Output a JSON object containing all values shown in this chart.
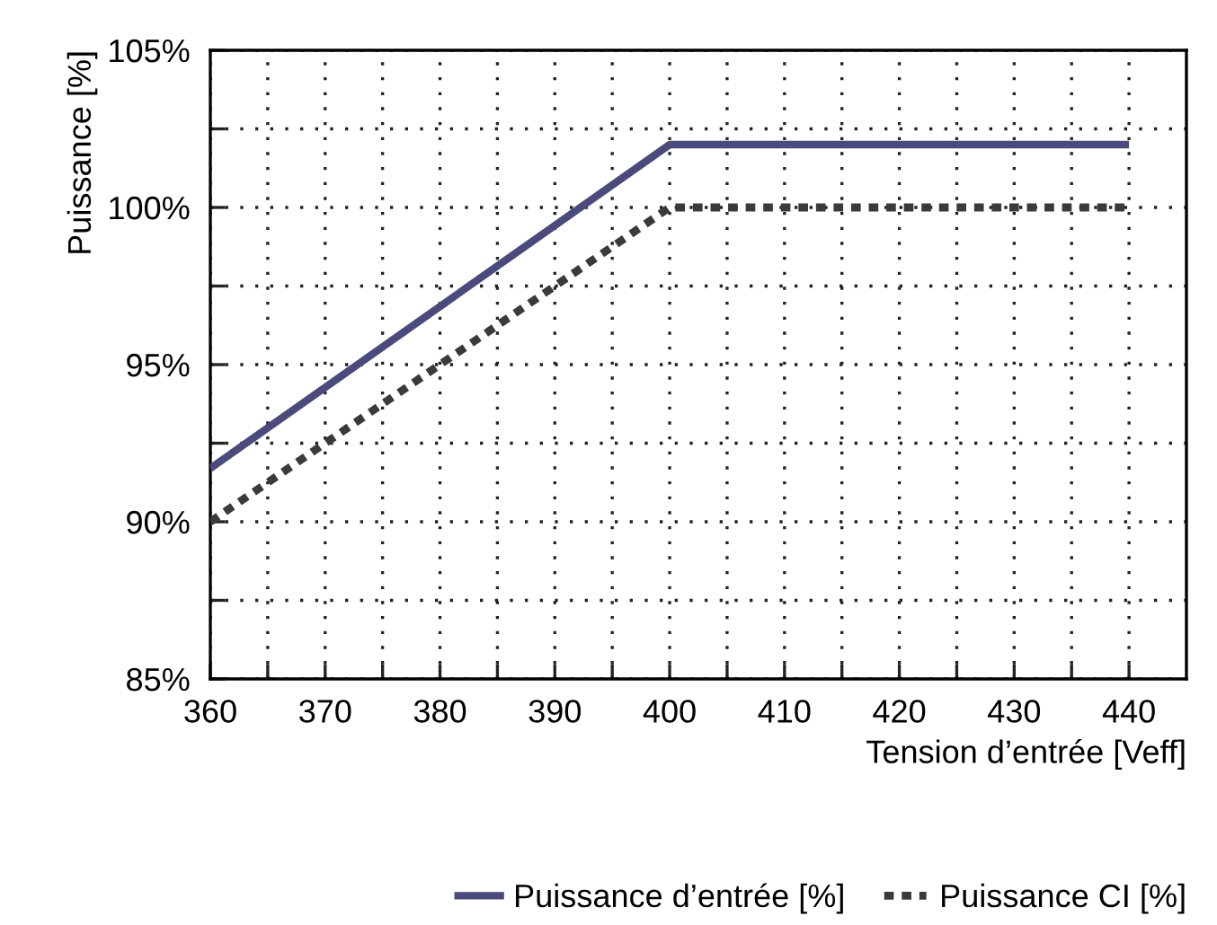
{
  "chart_data": {
    "type": "line",
    "xlabel": "Tension d’entrée [Veff]",
    "ylabel": "Puissance [%]",
    "series": [
      {
        "name": "Puissance d’entrée [%]",
        "color": "#4b4a7c",
        "x": [
          360,
          400,
          440
        ],
        "values": [
          91.7,
          102,
          102
        ],
        "line_style": "solid"
      },
      {
        "name": "Puissance CI [%]",
        "color": "#3a3a3a",
        "x": [
          360,
          400,
          440
        ],
        "values": [
          90,
          100,
          100
        ],
        "line_style": "dotted"
      }
    ],
    "xlim": [
      360,
      445
    ],
    "ylim": [
      85,
      105
    ],
    "xticks": [
      360,
      {
        "value": 365,
        "label": null
      },
      370,
      {
        "value": 375,
        "label": null
      },
      380,
      {
        "value": 385,
        "label": null
      },
      390,
      {
        "value": 395,
        "label": null
      },
      400,
      {
        "value": 405,
        "label": null
      },
      410,
      {
        "value": 415,
        "label": null
      },
      420,
      {
        "value": 425,
        "label": null
      },
      430,
      {
        "value": 435,
        "label": null
      },
      440
    ],
    "yticks": [
      {
        "value": 85,
        "label": "85%"
      },
      {
        "value": 87.5,
        "label": null
      },
      {
        "value": 90,
        "label": "90%"
      },
      {
        "value": 92.5,
        "label": null
      },
      {
        "value": 95,
        "label": "95%"
      },
      {
        "value": 97.5,
        "label": null
      },
      {
        "value": 100,
        "label": "100%"
      },
      {
        "value": 102.5,
        "label": null
      },
      {
        "value": 105,
        "label": "105%"
      }
    ],
    "grid": true,
    "legend": "bottom right",
    "marker": "none"
  }
}
